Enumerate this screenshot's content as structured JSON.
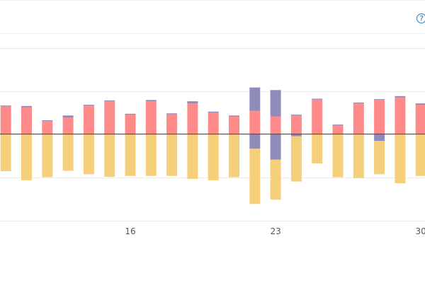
{
  "header": {
    "help_icon": "question-circle-icon"
  },
  "colors": {
    "series_a": "#ff8a8a",
    "series_b": "#8e8cba",
    "series_c": "#f5cf7a",
    "zero_line": "#555555",
    "grid": "#e8e8e8",
    "help": "#2a7ab8"
  },
  "chart_data": {
    "type": "bar",
    "stacked": true,
    "grid": true,
    "ylim": [
      -2,
      2
    ],
    "x": [
      10,
      11,
      12,
      13,
      14,
      15,
      16,
      17,
      18,
      19,
      20,
      21,
      22,
      23,
      24,
      25,
      26,
      27,
      28,
      29,
      30
    ],
    "x_ticks": [
      "16",
      "23",
      "30"
    ],
    "series": [
      {
        "color": "#ff8a8a",
        "values": [
          0.64,
          0.62,
          0.3,
          0.38,
          0.66,
          0.76,
          0.45,
          0.76,
          0.46,
          0.71,
          0.5,
          0.41,
          0.54,
          0.41,
          0.43,
          0.8,
          0.2,
          0.71,
          0.79,
          0.85,
          0.68
        ]
      },
      {
        "color": "#8e8cba",
        "values": [
          0.02,
          0.03,
          0.02,
          0.05,
          0.02,
          0.02,
          0.02,
          0.03,
          0.02,
          0.05,
          0.02,
          0.02,
          0.54,
          0.61,
          0.02,
          0.02,
          0.02,
          0.02,
          0.02,
          0.03,
          0.03
        ]
      },
      {
        "color": "#8e8cba",
        "values": [
          0,
          0,
          0,
          0,
          0,
          0,
          0,
          0,
          0,
          0,
          0,
          0,
          -0.34,
          -0.59,
          -0.05,
          0,
          0,
          0,
          -0.16,
          0,
          0
        ]
      },
      {
        "color": "#f5cf7a",
        "values": [
          -0.86,
          -1.07,
          -1.0,
          -0.85,
          -0.93,
          -0.99,
          -0.97,
          -0.97,
          -0.97,
          -1.04,
          -1.07,
          -1.0,
          -1.28,
          -0.93,
          -1.05,
          -0.68,
          -1.0,
          -1.02,
          -0.77,
          -1.14,
          -0.97
        ]
      }
    ]
  }
}
